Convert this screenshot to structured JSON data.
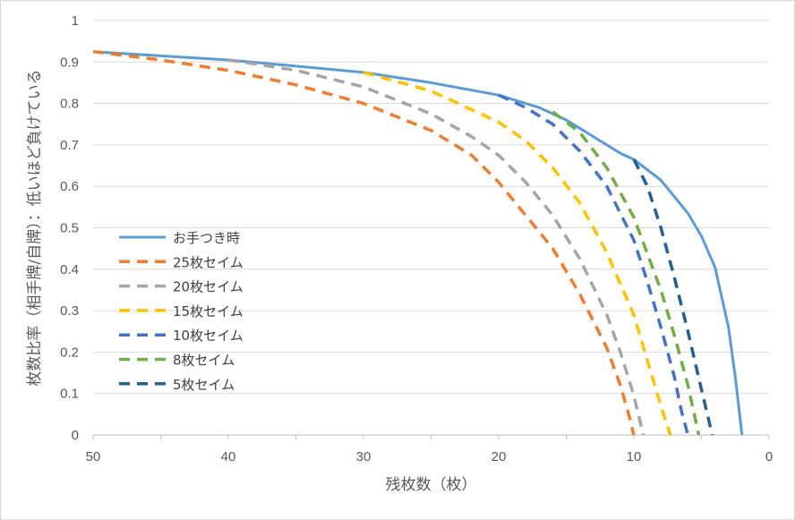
{
  "chart_data": {
    "type": "line",
    "title": "",
    "xlabel": "残枚数（枚）",
    "ylabel": "枚数比率（相手牌/自牌）：低いほど負けている",
    "xlim": [
      50,
      0
    ],
    "x_reversed": true,
    "ylim": [
      0,
      1
    ],
    "xticks": [
      "50",
      "40",
      "30",
      "20",
      "10",
      "0"
    ],
    "yticks": [
      "0",
      "0.1",
      "0.2",
      "0.3",
      "0.4",
      "0.5",
      "0.6",
      "0.7",
      "0.8",
      "0.9",
      "1"
    ],
    "grid": "horizontal",
    "legend_position": "left-center",
    "series": [
      {
        "name": "お手つき時",
        "style": "solid",
        "color": "#5b9bd5",
        "points": [
          [
            50,
            0.925
          ],
          [
            45,
            0.915
          ],
          [
            40,
            0.905
          ],
          [
            35,
            0.89
          ],
          [
            30,
            0.875
          ],
          [
            25,
            0.85
          ],
          [
            20,
            0.82
          ],
          [
            17,
            0.79
          ],
          [
            15,
            0.76
          ],
          [
            13,
            0.72
          ],
          [
            11,
            0.68
          ],
          [
            10,
            0.665
          ],
          [
            8,
            0.615
          ],
          [
            6,
            0.535
          ],
          [
            5,
            0.48
          ],
          [
            4,
            0.405
          ],
          [
            3,
            0.26
          ],
          [
            2.5,
            0.14
          ],
          [
            2,
            0
          ]
        ]
      },
      {
        "name": "25枚セイム",
        "style": "dashed",
        "color": "#ed7d31",
        "points": [
          [
            50,
            0.925
          ],
          [
            45,
            0.905
          ],
          [
            40,
            0.88
          ],
          [
            35,
            0.845
          ],
          [
            30,
            0.8
          ],
          [
            25,
            0.735
          ],
          [
            22,
            0.675
          ],
          [
            20,
            0.61
          ],
          [
            18,
            0.53
          ],
          [
            16,
            0.45
          ],
          [
            14,
            0.34
          ],
          [
            12,
            0.21
          ],
          [
            11,
            0.12
          ],
          [
            10.3,
            0.04
          ],
          [
            10,
            0
          ]
        ]
      },
      {
        "name": "20枚セイム",
        "style": "dashed",
        "color": "#a5a5a5",
        "points": [
          [
            40,
            0.905
          ],
          [
            35,
            0.88
          ],
          [
            30,
            0.84
          ],
          [
            25,
            0.775
          ],
          [
            22,
            0.72
          ],
          [
            20,
            0.675
          ],
          [
            18,
            0.61
          ],
          [
            16,
            0.53
          ],
          [
            14,
            0.425
          ],
          [
            12,
            0.29
          ],
          [
            11,
            0.2
          ],
          [
            10,
            0.095
          ],
          [
            9.3,
            0
          ]
        ]
      },
      {
        "name": "15枚セイム",
        "style": "dashed",
        "color": "#ffc000",
        "points": [
          [
            30,
            0.875
          ],
          [
            25,
            0.83
          ],
          [
            20,
            0.755
          ],
          [
            18,
            0.71
          ],
          [
            16,
            0.645
          ],
          [
            14,
            0.56
          ],
          [
            12,
            0.44
          ],
          [
            10,
            0.29
          ],
          [
            9,
            0.18
          ],
          [
            8,
            0.07
          ],
          [
            7.3,
            0
          ]
        ]
      },
      {
        "name": "10枚セイム",
        "style": "dashed",
        "color": "#4472c4",
        "points": [
          [
            20,
            0.82
          ],
          [
            18,
            0.79
          ],
          [
            16,
            0.75
          ],
          [
            14,
            0.685
          ],
          [
            12,
            0.6
          ],
          [
            10,
            0.47
          ],
          [
            9,
            0.37
          ],
          [
            8,
            0.26
          ],
          [
            7,
            0.14
          ],
          [
            6.5,
            0.06
          ],
          [
            6,
            0
          ]
        ]
      },
      {
        "name": "8枚セイム",
        "style": "dashed",
        "color": "#70ad47",
        "points": [
          [
            16,
            0.78
          ],
          [
            14,
            0.73
          ],
          [
            12,
            0.645
          ],
          [
            10,
            0.525
          ],
          [
            8,
            0.35
          ],
          [
            7,
            0.24
          ],
          [
            6,
            0.12
          ],
          [
            5.2,
            0
          ]
        ]
      },
      {
        "name": "5枚セイム",
        "style": "dashed",
        "color": "#255e91",
        "points": [
          [
            10,
            0.665
          ],
          [
            9,
            0.6
          ],
          [
            8,
            0.5
          ],
          [
            7,
            0.38
          ],
          [
            6,
            0.25
          ],
          [
            5,
            0.11
          ],
          [
            4.2,
            0
          ]
        ]
      }
    ]
  }
}
